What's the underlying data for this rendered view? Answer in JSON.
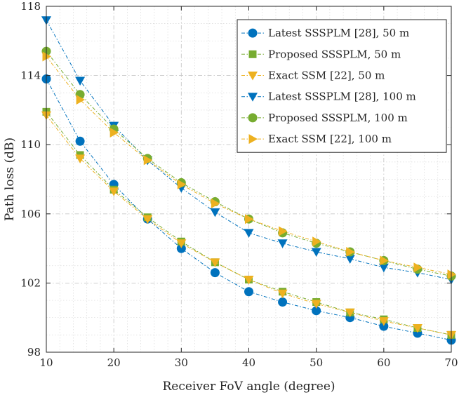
{
  "chart_data": {
    "type": "line",
    "xlabel": "Receiver FoV angle (degree)",
    "ylabel": "Path loss (dB)",
    "xlim": [
      10,
      70
    ],
    "ylim": [
      98,
      118
    ],
    "x": [
      10,
      15,
      20,
      25,
      30,
      35,
      40,
      45,
      50,
      55,
      60,
      65,
      70
    ],
    "xticks": [
      10,
      20,
      30,
      40,
      50,
      60,
      70
    ],
    "yticks": [
      98,
      102,
      106,
      110,
      114,
      118
    ],
    "grid": true,
    "legend_position": "top-right",
    "series": [
      {
        "name": "Latest SSSPLM [28], 50 m",
        "color": "#0072BD",
        "marker": "circle",
        "values": [
          113.8,
          110.2,
          107.7,
          105.7,
          104.0,
          102.6,
          101.5,
          100.9,
          100.4,
          100.0,
          99.5,
          99.1,
          98.7
        ]
      },
      {
        "name": "Proposed SSSPLM, 50 m",
        "color": "#77AC30",
        "marker": "square",
        "values": [
          111.9,
          109.4,
          107.4,
          105.8,
          104.4,
          103.2,
          102.2,
          101.5,
          100.9,
          100.3,
          99.9,
          99.4,
          99.0
        ]
      },
      {
        "name": "Exact SSM [22], 50 m",
        "color": "#EDB120",
        "marker": "triangle-down",
        "values": [
          111.7,
          109.2,
          107.3,
          105.7,
          104.3,
          103.2,
          102.2,
          101.4,
          100.8,
          100.3,
          99.8,
          99.4,
          99.0
        ]
      },
      {
        "name": "Latest SSSPLM [28], 100 m",
        "color": "#0072BD",
        "marker": "triangle-down",
        "values": [
          117.2,
          113.7,
          111.1,
          109.1,
          107.5,
          106.1,
          104.9,
          104.3,
          103.8,
          103.4,
          102.9,
          102.6,
          102.2
        ]
      },
      {
        "name": "Proposed SSSPLM, 100 m",
        "color": "#77AC30",
        "marker": "circle",
        "values": [
          115.4,
          112.9,
          110.9,
          109.2,
          107.8,
          106.7,
          105.7,
          104.9,
          104.3,
          103.8,
          103.3,
          102.8,
          102.4
        ]
      },
      {
        "name": "Exact SSM [22], 100 m",
        "color": "#EDB120",
        "marker": "triangle-right",
        "values": [
          115.1,
          112.6,
          110.7,
          109.1,
          107.7,
          106.6,
          105.7,
          105.0,
          104.4,
          103.8,
          103.3,
          102.9,
          102.5
        ]
      }
    ]
  }
}
